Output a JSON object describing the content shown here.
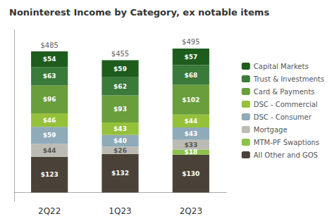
{
  "chart_data": {
    "type": "bar",
    "title": "Noninterest Income by Category, ex notable items",
    "categories": [
      "2Q22",
      "1Q23",
      "2Q23"
    ],
    "stacked": true,
    "data_labels": true,
    "tick_labels": "x",
    "grid": false,
    "legend": "right",
    "ylim": [
      -30,
      560
    ],
    "series": [
      {
        "name": "All Other and GOS",
        "color": "#4a4238",
        "values": [
          123,
          132,
          130
        ],
        "value_labels": [
          "$123",
          "$132",
          "$130"
        ]
      },
      {
        "name": "MTM-PF Swaptions",
        "color": "#8bc34a",
        "values": [
          0,
          0,
          18
        ],
        "value_labels": [
          null,
          null,
          "$18"
        ]
      },
      {
        "name": "Mortgage",
        "color": "#bcbcb4",
        "values": [
          44,
          26,
          33
        ],
        "value_labels": [
          "$44",
          "$26",
          "$33"
        ]
      },
      {
        "name": "DSC - Consumer",
        "color": "#8faab8",
        "values": [
          59,
          40,
          43
        ],
        "value_labels": [
          "$59",
          "$40",
          "$43"
        ]
      },
      {
        "name": "DSC - Commercial",
        "color": "#95c03a",
        "values": [
          46,
          43,
          44
        ],
        "value_labels": [
          "$46",
          "$43",
          "$44"
        ]
      },
      {
        "name": "Card & Payments",
        "color": "#6a9e3c",
        "values": [
          96,
          93,
          102
        ],
        "value_labels": [
          "$96",
          "$93",
          "$102"
        ]
      },
      {
        "name": "Trust & Investments",
        "color": "#3a7a3a",
        "values": [
          63,
          62,
          68
        ],
        "value_labels": [
          "$63",
          "$62",
          "$68"
        ]
      },
      {
        "name": "Capital Markets",
        "color": "#1e5c1e",
        "values": [
          54,
          59,
          57
        ],
        "value_labels": [
          "$54",
          "$59",
          "$57"
        ]
      }
    ],
    "totals": [
      485,
      455,
      495
    ],
    "total_labels": [
      "$485",
      "$455",
      "$495"
    ]
  }
}
